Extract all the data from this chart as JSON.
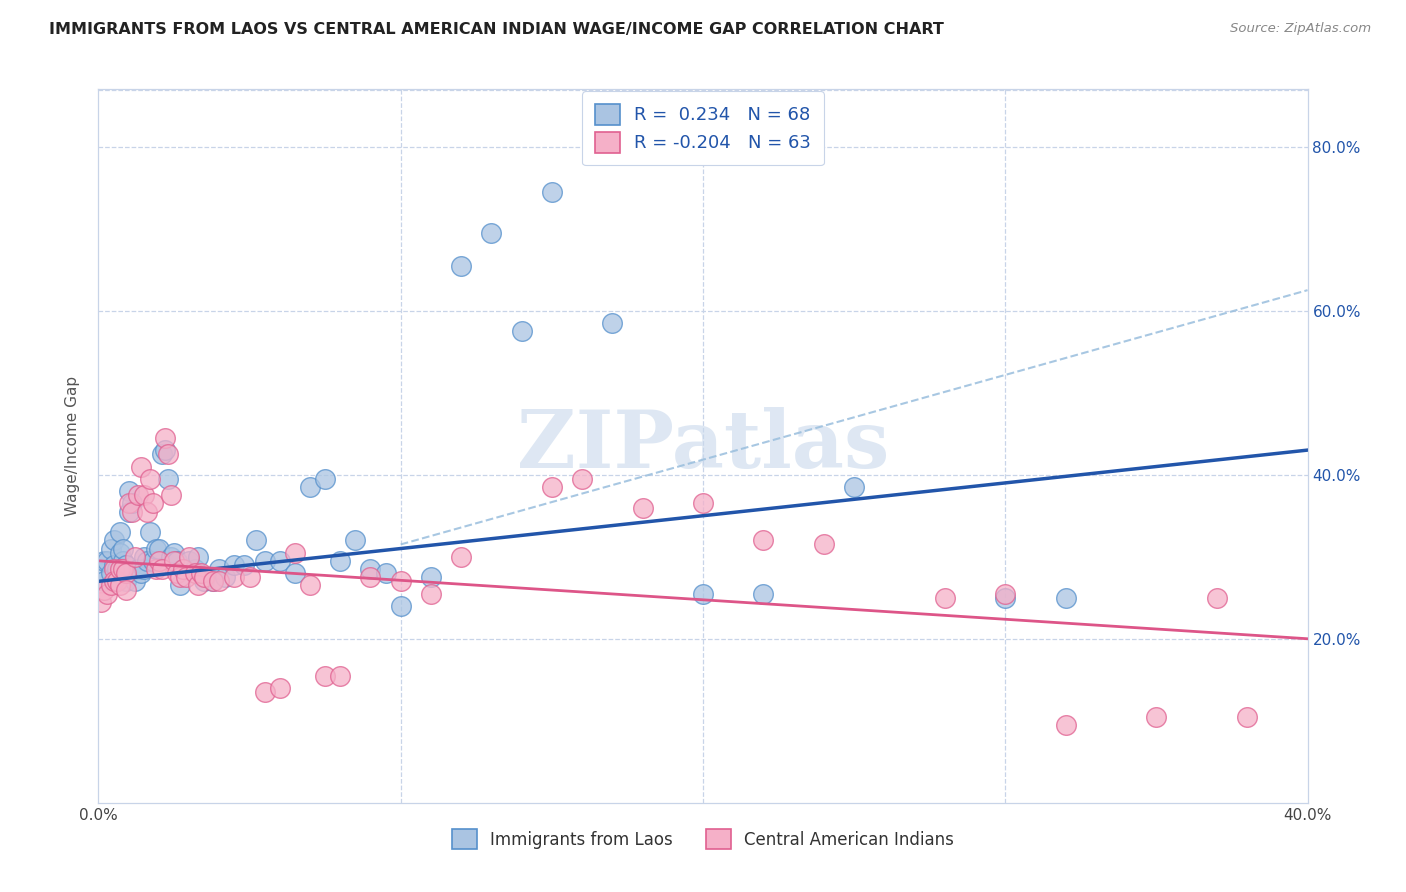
{
  "title": "IMMIGRANTS FROM LAOS VS CENTRAL AMERICAN INDIAN WAGE/INCOME GAP CORRELATION CHART",
  "source": "Source: ZipAtlas.com",
  "ylabel": "Wage/Income Gap",
  "laos_R": 0.234,
  "laos_N": 68,
  "central_R": -0.204,
  "central_N": 63,
  "laos_color": "#aac4e2",
  "laos_edge_color": "#5590cc",
  "laos_line_color": "#2255aa",
  "central_color": "#f5b0c8",
  "central_edge_color": "#e06090",
  "central_line_color": "#dd5588",
  "dash_color": "#99bedd",
  "background_color": "#ffffff",
  "grid_color": "#c8d4e8",
  "watermark_color": "#c8d8ec",
  "legend_label_1": "Immigrants from Laos",
  "legend_label_2": "Central American Indians",
  "xlim": [
    0.0,
    0.4
  ],
  "ylim": [
    0.0,
    0.87
  ],
  "laos_scatter": [
    [
      0.001,
      0.28
    ],
    [
      0.002,
      0.295
    ],
    [
      0.002,
      0.27
    ],
    [
      0.003,
      0.295
    ],
    [
      0.004,
      0.31
    ],
    [
      0.004,
      0.28
    ],
    [
      0.005,
      0.32
    ],
    [
      0.005,
      0.29
    ],
    [
      0.006,
      0.27
    ],
    [
      0.006,
      0.285
    ],
    [
      0.007,
      0.33
    ],
    [
      0.007,
      0.305
    ],
    [
      0.008,
      0.295
    ],
    [
      0.008,
      0.31
    ],
    [
      0.009,
      0.27
    ],
    [
      0.009,
      0.29
    ],
    [
      0.01,
      0.38
    ],
    [
      0.01,
      0.355
    ],
    [
      0.011,
      0.365
    ],
    [
      0.012,
      0.27
    ],
    [
      0.013,
      0.285
    ],
    [
      0.014,
      0.28
    ],
    [
      0.015,
      0.3
    ],
    [
      0.015,
      0.285
    ],
    [
      0.016,
      0.295
    ],
    [
      0.017,
      0.33
    ],
    [
      0.018,
      0.295
    ],
    [
      0.019,
      0.31
    ],
    [
      0.02,
      0.31
    ],
    [
      0.021,
      0.425
    ],
    [
      0.022,
      0.43
    ],
    [
      0.023,
      0.395
    ],
    [
      0.024,
      0.3
    ],
    [
      0.025,
      0.305
    ],
    [
      0.026,
      0.295
    ],
    [
      0.027,
      0.265
    ],
    [
      0.028,
      0.285
    ],
    [
      0.03,
      0.295
    ],
    [
      0.032,
      0.285
    ],
    [
      0.033,
      0.3
    ],
    [
      0.035,
      0.27
    ],
    [
      0.038,
      0.27
    ],
    [
      0.04,
      0.285
    ],
    [
      0.042,
      0.275
    ],
    [
      0.045,
      0.29
    ],
    [
      0.048,
      0.29
    ],
    [
      0.052,
      0.32
    ],
    [
      0.055,
      0.295
    ],
    [
      0.06,
      0.295
    ],
    [
      0.065,
      0.28
    ],
    [
      0.07,
      0.385
    ],
    [
      0.075,
      0.395
    ],
    [
      0.08,
      0.295
    ],
    [
      0.085,
      0.32
    ],
    [
      0.09,
      0.285
    ],
    [
      0.095,
      0.28
    ],
    [
      0.1,
      0.24
    ],
    [
      0.11,
      0.275
    ],
    [
      0.12,
      0.655
    ],
    [
      0.13,
      0.695
    ],
    [
      0.14,
      0.575
    ],
    [
      0.15,
      0.745
    ],
    [
      0.17,
      0.585
    ],
    [
      0.2,
      0.255
    ],
    [
      0.22,
      0.255
    ],
    [
      0.25,
      0.385
    ],
    [
      0.3,
      0.25
    ],
    [
      0.32,
      0.25
    ]
  ],
  "central_scatter": [
    [
      0.001,
      0.245
    ],
    [
      0.002,
      0.26
    ],
    [
      0.003,
      0.255
    ],
    [
      0.004,
      0.265
    ],
    [
      0.005,
      0.285
    ],
    [
      0.005,
      0.27
    ],
    [
      0.006,
      0.27
    ],
    [
      0.007,
      0.265
    ],
    [
      0.007,
      0.285
    ],
    [
      0.008,
      0.285
    ],
    [
      0.009,
      0.28
    ],
    [
      0.009,
      0.26
    ],
    [
      0.01,
      0.365
    ],
    [
      0.011,
      0.355
    ],
    [
      0.012,
      0.3
    ],
    [
      0.013,
      0.375
    ],
    [
      0.014,
      0.41
    ],
    [
      0.015,
      0.375
    ],
    [
      0.016,
      0.355
    ],
    [
      0.017,
      0.395
    ],
    [
      0.018,
      0.365
    ],
    [
      0.019,
      0.285
    ],
    [
      0.02,
      0.295
    ],
    [
      0.021,
      0.285
    ],
    [
      0.022,
      0.445
    ],
    [
      0.023,
      0.425
    ],
    [
      0.024,
      0.375
    ],
    [
      0.025,
      0.295
    ],
    [
      0.026,
      0.28
    ],
    [
      0.027,
      0.275
    ],
    [
      0.028,
      0.285
    ],
    [
      0.029,
      0.275
    ],
    [
      0.03,
      0.3
    ],
    [
      0.032,
      0.28
    ],
    [
      0.033,
      0.265
    ],
    [
      0.034,
      0.28
    ],
    [
      0.035,
      0.275
    ],
    [
      0.038,
      0.27
    ],
    [
      0.04,
      0.27
    ],
    [
      0.045,
      0.275
    ],
    [
      0.05,
      0.275
    ],
    [
      0.055,
      0.135
    ],
    [
      0.06,
      0.14
    ],
    [
      0.065,
      0.305
    ],
    [
      0.07,
      0.265
    ],
    [
      0.075,
      0.155
    ],
    [
      0.08,
      0.155
    ],
    [
      0.09,
      0.275
    ],
    [
      0.1,
      0.27
    ],
    [
      0.11,
      0.255
    ],
    [
      0.12,
      0.3
    ],
    [
      0.15,
      0.385
    ],
    [
      0.16,
      0.395
    ],
    [
      0.18,
      0.36
    ],
    [
      0.2,
      0.365
    ],
    [
      0.22,
      0.32
    ],
    [
      0.24,
      0.315
    ],
    [
      0.28,
      0.25
    ],
    [
      0.3,
      0.255
    ],
    [
      0.32,
      0.095
    ],
    [
      0.35,
      0.105
    ],
    [
      0.37,
      0.25
    ],
    [
      0.38,
      0.105
    ]
  ]
}
